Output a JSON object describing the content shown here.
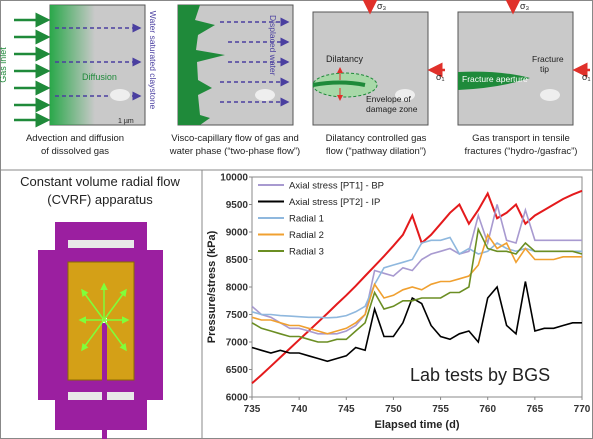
{
  "diagrams": [
    {
      "labels": [
        "Gas inlet",
        "Diffusion",
        "Water saturated claystone",
        "1 µm"
      ],
      "caption": [
        "Advection and diffusion",
        "of dissolved gas"
      ]
    },
    {
      "labels": [
        "Displaced water"
      ],
      "caption": [
        "Visco-capillary flow of gas and",
        "water phase (“two-phase flow”)"
      ]
    },
    {
      "labels": [
        "σ₃",
        "σ₁",
        "Dilatancy",
        "Envelope of",
        "damage zone"
      ],
      "caption": [
        "Dilatancy controlled gas",
        "flow (“pathway dilation”)"
      ]
    },
    {
      "labels": [
        "σ₃",
        "σ₁",
        "Fracture aperture",
        "Fracture",
        "tip"
      ],
      "caption": [
        "Gas transport in tensile",
        "fractures (“hydro-/gasfrac”)"
      ]
    }
  ],
  "apparatus": {
    "title": [
      "Constant volume radial flow",
      "(CVRF) apparatus"
    ]
  },
  "chart_data": {
    "type": "line",
    "xlabel": "Elapsed time (d)",
    "ylabel": "Pressure/stress (kPa)",
    "annotation": "Lab tests by BGS",
    "grid": false,
    "legend": "upper left",
    "x": [
      735,
      736,
      737,
      738,
      739,
      740,
      741,
      742,
      743,
      744,
      745,
      746,
      747,
      748,
      749,
      750,
      751,
      752,
      753,
      754,
      755,
      756,
      757,
      758,
      759,
      760,
      761,
      762,
      763,
      764,
      765,
      766,
      767,
      768,
      769,
      770
    ],
    "xlim": [
      735,
      770
    ],
    "xticks": [
      735,
      740,
      745,
      750,
      755,
      760,
      765,
      770
    ],
    "ylim": [
      6000,
      10000
    ],
    "yticks": [
      6000,
      6500,
      7000,
      7500,
      8000,
      8500,
      9000,
      9500,
      10000
    ],
    "series": [
      {
        "color": "#e41a1c",
        "values": [
          6250,
          6400,
          6560,
          6720,
          6880,
          7040,
          7200,
          7360,
          7520,
          7690,
          7850,
          8020,
          8200,
          8380,
          8560,
          8750,
          8950,
          9300,
          8800,
          8950,
          9150,
          9350,
          9500,
          9150,
          9400,
          9700,
          9250,
          9350,
          9500,
          9150,
          9300,
          9400,
          9500,
          9600,
          9680,
          9750
        ]
      },
      {
        "name": "Axial stress [PT1] - BP",
        "color": "#a89ad0",
        "values": [
          7650,
          7500,
          7450,
          7350,
          7250,
          7250,
          7200,
          7150,
          7150,
          7150,
          7200,
          7300,
          7500,
          8300,
          8250,
          8200,
          8350,
          8300,
          8500,
          8600,
          8650,
          8700,
          8600,
          8650,
          9300,
          8800,
          9500,
          8850,
          8800,
          9400,
          8850,
          8850,
          8850,
          8850,
          8850,
          8850
        ]
      },
      {
        "name": "Axial stress [PT2] - IP",
        "color": "#000000",
        "values": [
          6900,
          6850,
          6800,
          6850,
          6800,
          6800,
          6750,
          6700,
          6650,
          6700,
          6750,
          6900,
          6850,
          7600,
          7100,
          7100,
          7350,
          7800,
          7700,
          7300,
          7100,
          7050,
          7150,
          7200,
          7000,
          7800,
          8000,
          7300,
          7150,
          8100,
          7200,
          7250,
          7250,
          7300,
          7350,
          7350
        ]
      },
      {
        "name": "Radial 1",
        "color": "#8fb8de",
        "values": [
          7550,
          7500,
          7500,
          7480,
          7470,
          7460,
          7450,
          7450,
          7440,
          7450,
          7480,
          7550,
          7650,
          8050,
          8350,
          8400,
          8450,
          8500,
          8800,
          8850,
          8850,
          8900,
          8600,
          8700,
          8600,
          8650,
          8800,
          8700,
          8650,
          8700,
          8650,
          8650,
          8650,
          8650,
          8650,
          8650
        ]
      },
      {
        "name": "Radial 2",
        "color": "#f0a030",
        "values": [
          7450,
          7400,
          7400,
          7350,
          7300,
          7300,
          7250,
          7200,
          7150,
          7200,
          7250,
          7350,
          7500,
          8050,
          7800,
          7850,
          7950,
          8000,
          7950,
          8050,
          8100,
          8100,
          8150,
          8200,
          8400,
          8950,
          8700,
          8800,
          8450,
          8700,
          8500,
          8500,
          8500,
          8550,
          8550,
          8550
        ]
      },
      {
        "name": "Radial 3",
        "color": "#6b8e23",
        "values": [
          7350,
          7250,
          7200,
          7150,
          7100,
          7100,
          7050,
          7000,
          7000,
          7050,
          7050,
          7200,
          7350,
          7900,
          7600,
          7650,
          7750,
          7750,
          7800,
          7800,
          7800,
          7900,
          7900,
          8000,
          9050,
          8700,
          8650,
          8650,
          8600,
          8800,
          8650,
          8650,
          8650,
          8650,
          8650,
          8600
        ]
      }
    ]
  }
}
